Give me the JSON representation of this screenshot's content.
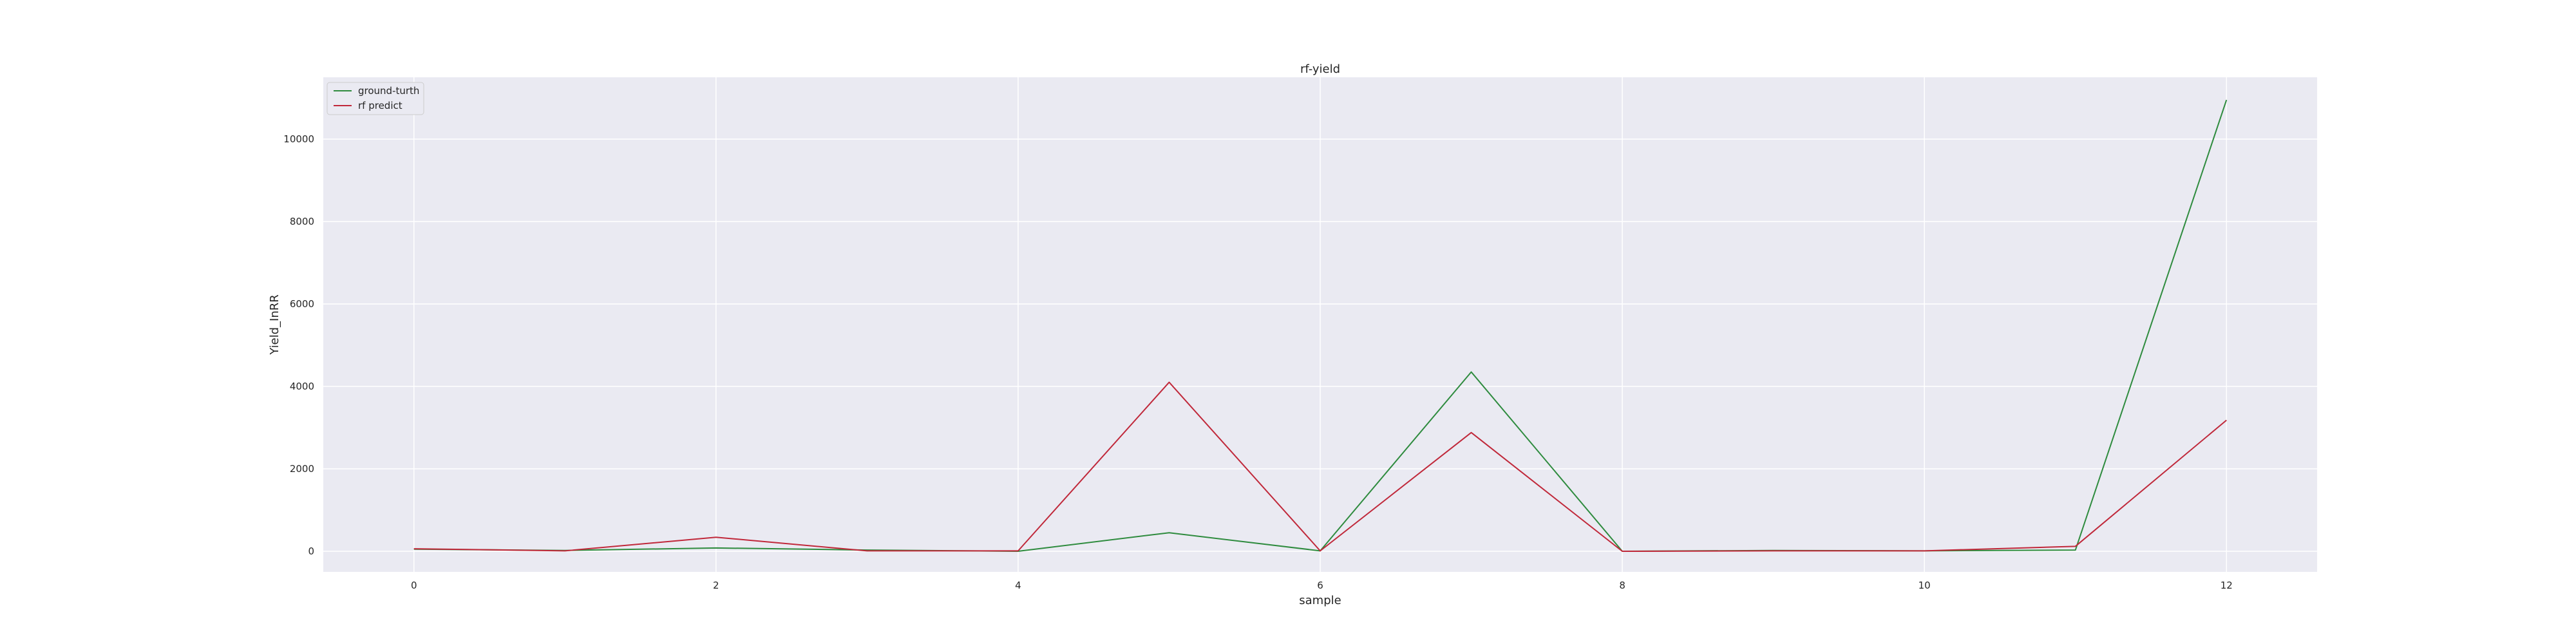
{
  "chart_data": {
    "type": "line",
    "title": "rf-yield",
    "xlabel": "sample",
    "ylabel": "Yield_InRR",
    "x": [
      0,
      1,
      2,
      3,
      4,
      5,
      6,
      7,
      8,
      9,
      10,
      11,
      12
    ],
    "xlim": [
      -0.6,
      12.6
    ],
    "ylim": [
      -500,
      11500
    ],
    "x_ticks": [
      0,
      2,
      4,
      6,
      8,
      10,
      12
    ],
    "y_ticks": [
      0,
      2000,
      4000,
      6000,
      8000,
      10000
    ],
    "grid": true,
    "legend_position": "top-left",
    "background_color": "#eaeaf2",
    "series": [
      {
        "name": "ground-turth",
        "color": "#2e8b3e",
        "values": [
          50,
          20,
          80,
          30,
          0,
          450,
          10,
          4350,
          0,
          20,
          10,
          30,
          10950
        ]
      },
      {
        "name": "rf predict",
        "color": "#c0283a",
        "values": [
          60,
          10,
          340,
          10,
          10,
          4100,
          10,
          2880,
          0,
          10,
          10,
          120,
          3180
        ]
      }
    ]
  }
}
